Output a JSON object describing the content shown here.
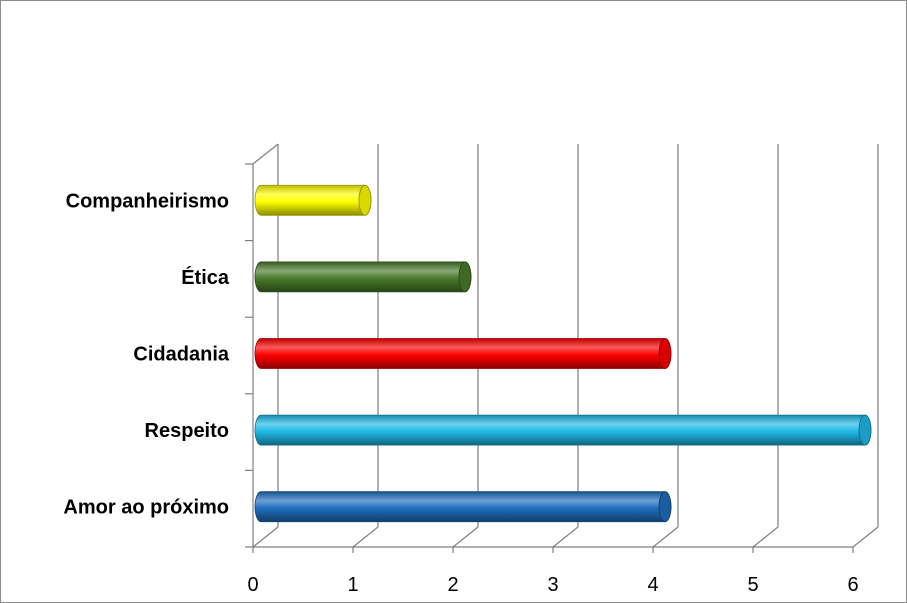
{
  "chart_data": {
    "type": "bar",
    "orientation": "horizontal",
    "style": "3d-cylinder",
    "categories": [
      "Amor ao próximo",
      "Respeito",
      "Cidadania",
      "Ética",
      "Companheirismo"
    ],
    "values": [
      4,
      6,
      4,
      2,
      1
    ],
    "colors": [
      "#1f6fbf",
      "#1fb9e8",
      "#ff0000",
      "#4a7a2a",
      "#ffff00"
    ],
    "xlim": [
      0,
      6
    ],
    "x_ticks": [
      "0",
      "1",
      "2",
      "3",
      "4",
      "5",
      "6"
    ],
    "grid": true,
    "legend": "none"
  }
}
